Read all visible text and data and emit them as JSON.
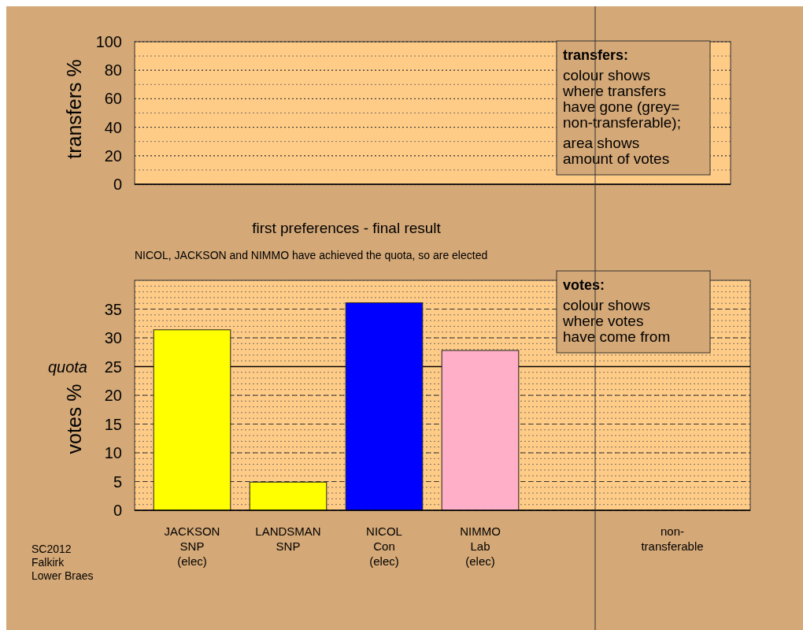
{
  "chart_data": [
    {
      "type": "bar",
      "ylabel": "transfers %",
      "categories": [
        null,
        null,
        null,
        null,
        null,
        null
      ],
      "values": [
        null,
        null,
        null,
        null,
        null,
        null
      ],
      "ylim": [
        0,
        100
      ],
      "yticks": [
        0,
        20,
        40,
        60,
        80,
        100
      ],
      "grid": "y",
      "tick_labels": "y",
      "annotations": [
        "transfers:\ncolour shows\nwhere transfers\nhave gone (grey=\nnon-transferable);\n\narea shows\namount of votes"
      ]
    },
    {
      "type": "bar",
      "title": "first preferences - final result",
      "subtitle": "NICOL, JACKSON and NIMMO have achieved the quota, so are elected",
      "ylabel": "votes %",
      "categories": [
        "JACKSON\nSNP\n(elec)",
        "LANDSMAN\nSNP",
        "NICOL\nCon\n(elec)",
        "NIMMO\nLab\n(elec)",
        null,
        "non-\ntransferable"
      ],
      "values": [
        31.4,
        4.9,
        36.1,
        27.8,
        null,
        null
      ],
      "colors": [
        "#ffff00",
        "#ffff00",
        "#0000ff",
        "#ffb0c8",
        null,
        null
      ],
      "ylim": [
        0,
        40
      ],
      "yticks": [
        0,
        5,
        10,
        15,
        20,
        25,
        30,
        35
      ],
      "grid": "y",
      "ref_lines": [
        {
          "axis": "y",
          "value": 25,
          "label": "quota"
        }
      ],
      "annotations": [
        "votes:\ncolour shows\nwhere votes\nhave come from",
        "SC2012\nFalkirk\nLower Braes"
      ]
    }
  ]
}
